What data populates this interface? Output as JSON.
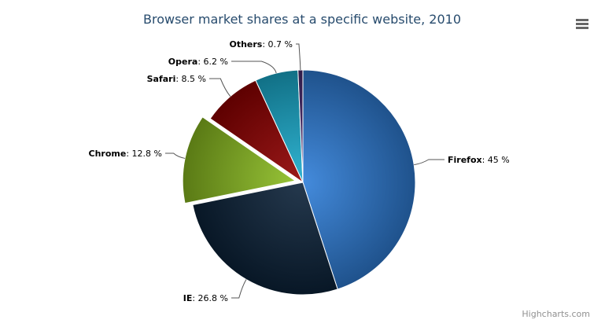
{
  "chart_data": {
    "type": "pie",
    "title": "Browser market shares at a specific website, 2010",
    "unit": "%",
    "slices": [
      {
        "name": "Firefox",
        "value": 45.0,
        "color": "#2f7ed8",
        "sliced": false
      },
      {
        "name": "IE",
        "value": 26.8,
        "color": "#0d233a",
        "sliced": false
      },
      {
        "name": "Chrome",
        "value": 12.8,
        "color": "#8bbc21",
        "sliced": true
      },
      {
        "name": "Safari",
        "value": 8.5,
        "color": "#910000",
        "sliced": false
      },
      {
        "name": "Opera",
        "value": 6.2,
        "color": "#1aadce",
        "sliced": false
      },
      {
        "name": "Others",
        "value": 0.7,
        "color": "#492970",
        "sliced": false
      }
    ]
  },
  "credits": "Highcharts.com",
  "menu_icon": "hamburger-menu-icon"
}
